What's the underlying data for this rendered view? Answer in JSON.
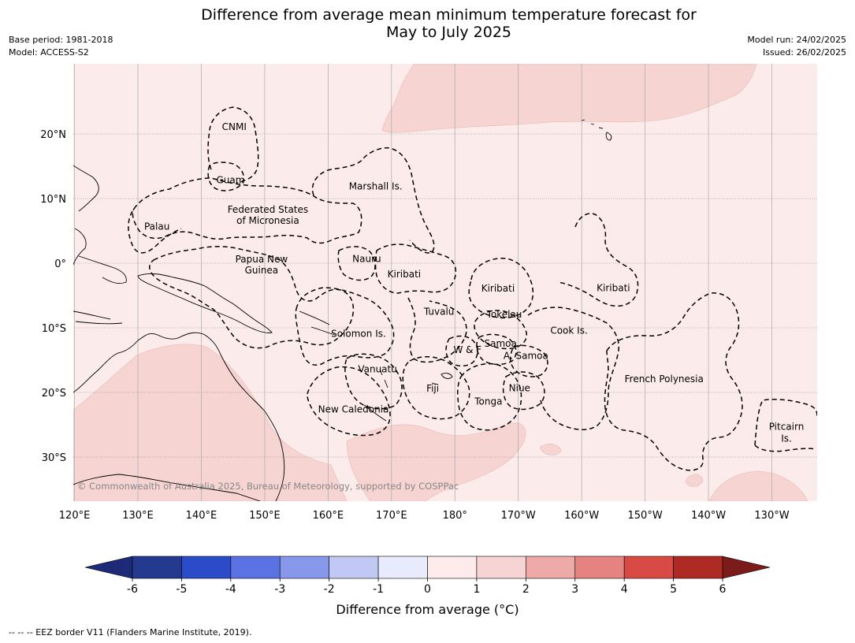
{
  "title": {
    "line1": "Difference from average mean minimum temperature forecast for",
    "line2": "May to July 2025"
  },
  "meta_left": {
    "base_period": "Base period: 1981-2018",
    "model": "Model: ACCESS-S2"
  },
  "meta_right": {
    "model_run": "Model run: 24/02/2025",
    "issued": "Issued: 26/02/2025"
  },
  "map": {
    "background_color": "#fbeceb",
    "anomaly_color": "#f6d4d2",
    "lat_labels": [
      {
        "text": "20°N",
        "lat": 20
      },
      {
        "text": "10°N",
        "lat": 10
      },
      {
        "text": "0°",
        "lat": 0
      },
      {
        "text": "10°S",
        "lat": -10
      },
      {
        "text": "20°S",
        "lat": -20
      },
      {
        "text": "30°S",
        "lat": -30
      }
    ],
    "lon_labels": [
      {
        "text": "120°E",
        "lon": 120
      },
      {
        "text": "130°E",
        "lon": 130
      },
      {
        "text": "140°E",
        "lon": 140
      },
      {
        "text": "150°E",
        "lon": 150
      },
      {
        "text": "160°E",
        "lon": 160
      },
      {
        "text": "170°E",
        "lon": 170
      },
      {
        "text": "180°",
        "lon": 180
      },
      {
        "text": "170°W",
        "lon": 190
      },
      {
        "text": "160°W",
        "lon": 200
      },
      {
        "text": "150°W",
        "lon": 210
      },
      {
        "text": "140°W",
        "lon": 220
      },
      {
        "text": "130°W",
        "lon": 230
      }
    ],
    "regions": [
      {
        "name": "CNMI",
        "lon": 145.2,
        "lat": 20.6
      },
      {
        "name": "Guam",
        "lon": 144.6,
        "lat": 12.4
      },
      {
        "name": "Marshall Is.",
        "lon": 167.5,
        "lat": 11.4
      },
      {
        "name": "Federated States",
        "lon": 150.5,
        "lat": 7.8
      },
      {
        "name": "of Micronesia",
        "lon": 150.5,
        "lat": 6.1
      },
      {
        "name": "Palau",
        "lon": 133,
        "lat": 5.2
      },
      {
        "name": "Papua New",
        "lon": 149.5,
        "lat": 0.1
      },
      {
        "name": "Guinea",
        "lon": 149.5,
        "lat": -1.6
      },
      {
        "name": "Nauru",
        "lon": 166.1,
        "lat": 0.2
      },
      {
        "name": "Kiribati",
        "lon": 172,
        "lat": -2.2
      },
      {
        "name": "Kiribati",
        "lon": 186.8,
        "lat": -4.4
      },
      {
        "name": "Kiribati",
        "lon": 205,
        "lat": -4.3
      },
      {
        "name": "Tuvalu",
        "lon": 177.5,
        "lat": -8
      },
      {
        "name": "Tokelau",
        "lon": 187.8,
        "lat": -8.4
      },
      {
        "name": "Cook Is.",
        "lon": 198,
        "lat": -10.9
      },
      {
        "name": "Solomon Is.",
        "lon": 164.8,
        "lat": -11.4
      },
      {
        "name": "Samoa",
        "lon": 187.2,
        "lat": -12.9
      },
      {
        "name": "W & F",
        "lon": 182,
        "lat": -13.9
      },
      {
        "name": "A. Samoa",
        "lon": 191.2,
        "lat": -14.8
      },
      {
        "name": "Vanuatu",
        "lon": 167.8,
        "lat": -16.9
      },
      {
        "name": "Fiji",
        "lon": 176.5,
        "lat": -19.9
      },
      {
        "name": "Niue",
        "lon": 190.2,
        "lat": -19.8
      },
      {
        "name": "French Polynesia",
        "lon": 213,
        "lat": -18.4
      },
      {
        "name": "Tonga",
        "lon": 185.3,
        "lat": -21.9
      },
      {
        "name": "New Caledonia",
        "lon": 164,
        "lat": -23.1
      },
      {
        "name": "Pitcairn",
        "lon": 232.3,
        "lat": -25.8
      },
      {
        "name": "Is.",
        "lon": 232.3,
        "lat": -27.6
      }
    ],
    "copyright": "© Commonwealth of Australia 2025, Bureau of Meteorology, supported by COSPPac"
  },
  "colorbar": {
    "ticks": [
      "-6",
      "-5",
      "-4",
      "-3",
      "-2",
      "-1",
      "0",
      "1",
      "2",
      "3",
      "4",
      "5",
      "6"
    ],
    "colors": [
      "#233a8e",
      "#2a4cc9",
      "#5a72e2",
      "#8797ea",
      "#c0c8f3",
      "#e8ebfb",
      "#fcebea",
      "#f6d4d3",
      "#edaaa8",
      "#e4837f",
      "#d94a44",
      "#ae2a24"
    ],
    "under_color": "#1c2a78",
    "over_color": "#7c1c1a",
    "label": "Difference from average (°C)"
  },
  "footer": "--  --  -- EEZ border V11 (Flanders Marine Institute, 2019)."
}
